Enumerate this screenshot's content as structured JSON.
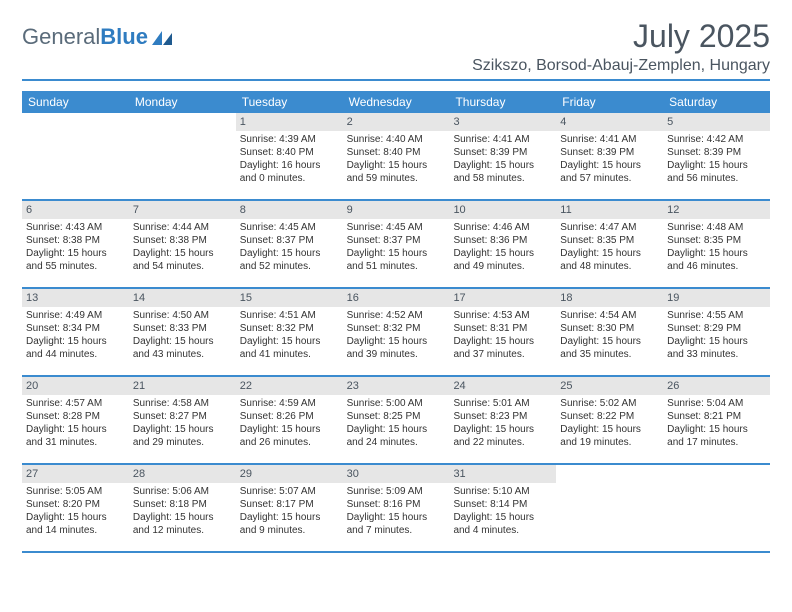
{
  "logo": {
    "part1": "General",
    "part2": "Blue"
  },
  "title": "July 2025",
  "subtitle": "Szikszo, Borsod-Abauj-Zemplen, Hungary",
  "colors": {
    "header_bar": "#3b8bcf",
    "day_number_bg": "#e6e6e6",
    "text": "#4a5560",
    "logo_gray": "#5a6b7a",
    "logo_blue": "#2f7cc0"
  },
  "weekdays": [
    "Sunday",
    "Monday",
    "Tuesday",
    "Wednesday",
    "Thursday",
    "Friday",
    "Saturday"
  ],
  "weeks": [
    [
      null,
      null,
      {
        "n": "1",
        "sr": "4:39 AM",
        "ss": "8:40 PM",
        "dl": "16 hours and 0 minutes."
      },
      {
        "n": "2",
        "sr": "4:40 AM",
        "ss": "8:40 PM",
        "dl": "15 hours and 59 minutes."
      },
      {
        "n": "3",
        "sr": "4:41 AM",
        "ss": "8:39 PM",
        "dl": "15 hours and 58 minutes."
      },
      {
        "n": "4",
        "sr": "4:41 AM",
        "ss": "8:39 PM",
        "dl": "15 hours and 57 minutes."
      },
      {
        "n": "5",
        "sr": "4:42 AM",
        "ss": "8:39 PM",
        "dl": "15 hours and 56 minutes."
      }
    ],
    [
      {
        "n": "6",
        "sr": "4:43 AM",
        "ss": "8:38 PM",
        "dl": "15 hours and 55 minutes."
      },
      {
        "n": "7",
        "sr": "4:44 AM",
        "ss": "8:38 PM",
        "dl": "15 hours and 54 minutes."
      },
      {
        "n": "8",
        "sr": "4:45 AM",
        "ss": "8:37 PM",
        "dl": "15 hours and 52 minutes."
      },
      {
        "n": "9",
        "sr": "4:45 AM",
        "ss": "8:37 PM",
        "dl": "15 hours and 51 minutes."
      },
      {
        "n": "10",
        "sr": "4:46 AM",
        "ss": "8:36 PM",
        "dl": "15 hours and 49 minutes."
      },
      {
        "n": "11",
        "sr": "4:47 AM",
        "ss": "8:35 PM",
        "dl": "15 hours and 48 minutes."
      },
      {
        "n": "12",
        "sr": "4:48 AM",
        "ss": "8:35 PM",
        "dl": "15 hours and 46 minutes."
      }
    ],
    [
      {
        "n": "13",
        "sr": "4:49 AM",
        "ss": "8:34 PM",
        "dl": "15 hours and 44 minutes."
      },
      {
        "n": "14",
        "sr": "4:50 AM",
        "ss": "8:33 PM",
        "dl": "15 hours and 43 minutes."
      },
      {
        "n": "15",
        "sr": "4:51 AM",
        "ss": "8:32 PM",
        "dl": "15 hours and 41 minutes."
      },
      {
        "n": "16",
        "sr": "4:52 AM",
        "ss": "8:32 PM",
        "dl": "15 hours and 39 minutes."
      },
      {
        "n": "17",
        "sr": "4:53 AM",
        "ss": "8:31 PM",
        "dl": "15 hours and 37 minutes."
      },
      {
        "n": "18",
        "sr": "4:54 AM",
        "ss": "8:30 PM",
        "dl": "15 hours and 35 minutes."
      },
      {
        "n": "19",
        "sr": "4:55 AM",
        "ss": "8:29 PM",
        "dl": "15 hours and 33 minutes."
      }
    ],
    [
      {
        "n": "20",
        "sr": "4:57 AM",
        "ss": "8:28 PM",
        "dl": "15 hours and 31 minutes."
      },
      {
        "n": "21",
        "sr": "4:58 AM",
        "ss": "8:27 PM",
        "dl": "15 hours and 29 minutes."
      },
      {
        "n": "22",
        "sr": "4:59 AM",
        "ss": "8:26 PM",
        "dl": "15 hours and 26 minutes."
      },
      {
        "n": "23",
        "sr": "5:00 AM",
        "ss": "8:25 PM",
        "dl": "15 hours and 24 minutes."
      },
      {
        "n": "24",
        "sr": "5:01 AM",
        "ss": "8:23 PM",
        "dl": "15 hours and 22 minutes."
      },
      {
        "n": "25",
        "sr": "5:02 AM",
        "ss": "8:22 PM",
        "dl": "15 hours and 19 minutes."
      },
      {
        "n": "26",
        "sr": "5:04 AM",
        "ss": "8:21 PM",
        "dl": "15 hours and 17 minutes."
      }
    ],
    [
      {
        "n": "27",
        "sr": "5:05 AM",
        "ss": "8:20 PM",
        "dl": "15 hours and 14 minutes."
      },
      {
        "n": "28",
        "sr": "5:06 AM",
        "ss": "8:18 PM",
        "dl": "15 hours and 12 minutes."
      },
      {
        "n": "29",
        "sr": "5:07 AM",
        "ss": "8:17 PM",
        "dl": "15 hours and 9 minutes."
      },
      {
        "n": "30",
        "sr": "5:09 AM",
        "ss": "8:16 PM",
        "dl": "15 hours and 7 minutes."
      },
      {
        "n": "31",
        "sr": "5:10 AM",
        "ss": "8:14 PM",
        "dl": "15 hours and 4 minutes."
      },
      null,
      null
    ]
  ],
  "labels": {
    "sunrise": "Sunrise:",
    "sunset": "Sunset:",
    "daylight": "Daylight:"
  }
}
